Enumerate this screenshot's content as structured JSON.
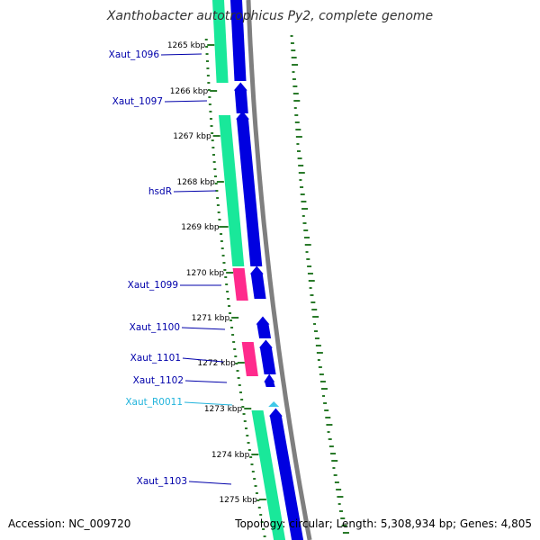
{
  "title": "Xanthobacter autotrophicus Py2, complete genome",
  "footer": {
    "accession_label": "Accession:",
    "accession": "NC_009720",
    "topology_label": "Topology:",
    "topology": "circular;",
    "length_label": "Length:",
    "length": "5,308,934 bp;",
    "genes_label": "Genes:",
    "genes": "4,805"
  },
  "colors": {
    "cds_forward": "#0000e0",
    "cds_green": "#19e89a",
    "pink": "#ff2a8c",
    "rna": "#40c8e8",
    "backbone": "#7f7f7f",
    "tick": "#2a7a2a",
    "gene_label": "#0000aa",
    "rna_label": "#22b4dc"
  },
  "kbp_ticks": [
    "1265 kbp",
    "1266 kbp",
    "1267 kbp",
    "1268 kbp",
    "1269 kbp",
    "1270 kbp",
    "1271 kbp",
    "1272 kbp",
    "1273 kbp",
    "1274 kbp",
    "1275 kbp"
  ],
  "gene_labels": [
    {
      "name": "Xaut_1096",
      "type": "gene"
    },
    {
      "name": "Xaut_1097",
      "type": "gene"
    },
    {
      "name": "hsdR",
      "type": "gene"
    },
    {
      "name": "Xaut_1099",
      "type": "gene"
    },
    {
      "name": "Xaut_1100",
      "type": "gene"
    },
    {
      "name": "Xaut_1101",
      "type": "gene"
    },
    {
      "name": "Xaut_1102",
      "type": "gene"
    },
    {
      "name": "Xaut_R0011",
      "type": "rna"
    },
    {
      "name": "Xaut_1103",
      "type": "gene"
    }
  ]
}
